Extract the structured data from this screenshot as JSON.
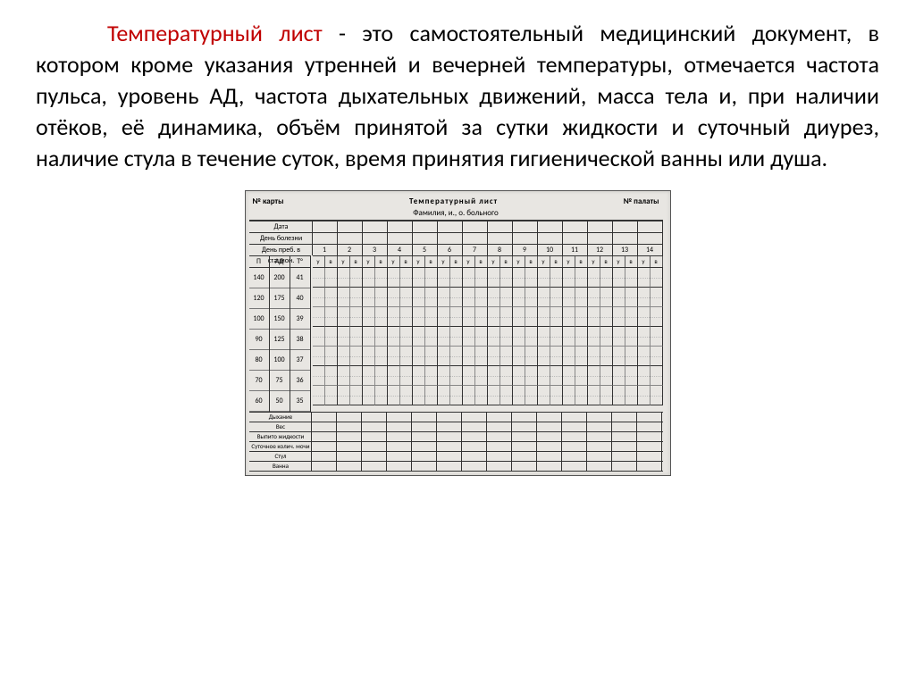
{
  "text": {
    "term": "Температурный лист",
    "body": " - это самостоятельный медицинский документ, в котором кроме указания утренней и вечерней температуры, отмечается частота пульса, уровень АД, частота дыхательных движений, масса тела и, при наличии отёков, её динамика, объём принятой за сутки жидкости и суточный диурез, наличие стула в течение суток, время принятия гигиенической ванны или душа."
  },
  "chart": {
    "header": {
      "card_no_label": "№ карты",
      "title": "Температурный лист",
      "ward_no_label": "№ палаты",
      "patient_label": "Фамилия, и., о. больного"
    },
    "left_rows": {
      "date_label": "Дата",
      "day_label": "День болезни",
      "stay_label": "День преб. в стацион."
    },
    "scale_headers": [
      "П",
      "АД",
      "Т°"
    ],
    "scale_P": [
      "140",
      "120",
      "100",
      "90",
      "80",
      "70",
      "60"
    ],
    "scale_AD": [
      "200",
      "175",
      "150",
      "125",
      "100",
      "75",
      "50"
    ],
    "scale_T": [
      "41",
      "40",
      "39",
      "38",
      "37",
      "36",
      "35"
    ],
    "days": [
      "1",
      "2",
      "3",
      "4",
      "5",
      "6",
      "7",
      "8",
      "9",
      "10",
      "11",
      "12",
      "13",
      "14"
    ],
    "uv": [
      "у",
      "в"
    ],
    "bottom_labels": [
      "Дыхание",
      "Вес",
      "Выпито жидкости",
      "Суточное колич. мочи",
      "Стул",
      "Ванна"
    ],
    "colors": {
      "term": "#c00000",
      "text": "#000000",
      "chart_bg": "#e8e6e2",
      "grid_line": "#333333"
    }
  }
}
